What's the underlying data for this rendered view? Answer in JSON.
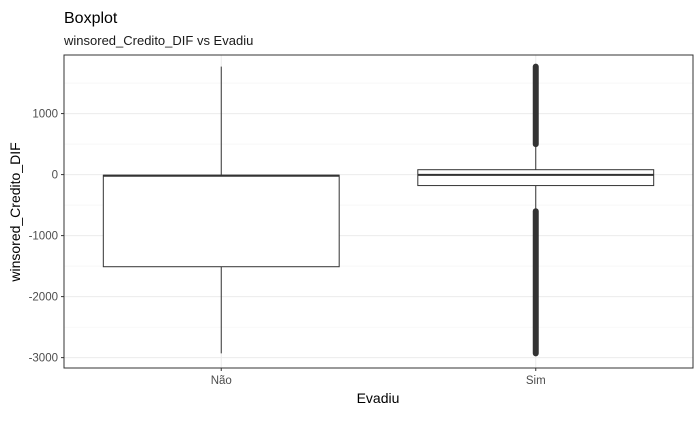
{
  "chart_data": {
    "type": "boxplot",
    "title": "Boxplot",
    "subtitle": "winsored_Credito_DIF vs Evadiu",
    "xlabel": "Evadiu",
    "ylabel": "winsored_Credito_DIF",
    "categories": [
      "Não",
      "Sim"
    ],
    "ylim": [
      -3170,
      1960
    ],
    "yticks": [
      1000,
      0,
      -1000,
      -2000,
      -3000
    ],
    "ytick_labels": [
      "1000",
      "0",
      "-1000",
      "-2000",
      "-3000"
    ],
    "grid": true,
    "theme": "black-and-white",
    "boxes": [
      {
        "category": "Não",
        "whisker_low": -2930,
        "q1": -1510,
        "median": -20,
        "q3": -10,
        "whisker_high": 1770,
        "outliers": {
          "low": null,
          "high": null
        }
      },
      {
        "category": "Sim",
        "whisker_low": -590,
        "q1": -180,
        "median": -5,
        "q3": 80,
        "whisker_high": 490,
        "outliers": {
          "low": [
            -2930,
            -600
          ],
          "high": [
            500,
            1770
          ]
        }
      }
    ],
    "colors": {
      "box_stroke": "#333333",
      "box_fill": "#ffffff",
      "grid": "#ebebeb",
      "panel_border": "#333333"
    }
  }
}
